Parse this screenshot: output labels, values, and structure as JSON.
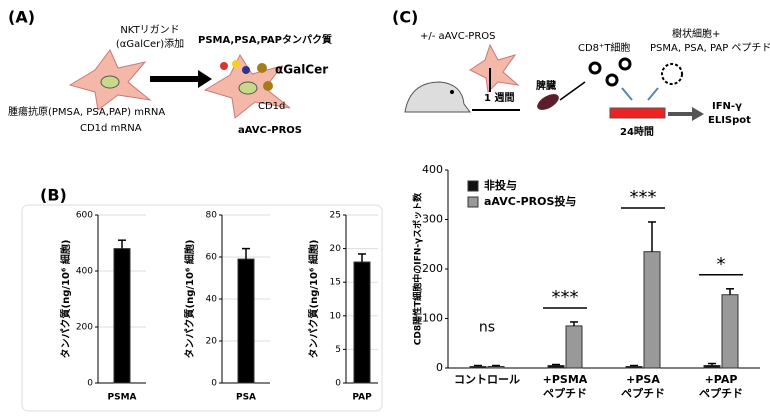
{
  "panels": [
    "(A)",
    "(B)",
    "(C)"
  ],
  "diagram_a": {
    "ligand": [
      "NKTリガンド",
      "(αGalCer)添加"
    ],
    "antigen_mrna": "腫瘍抗原(PMSA, PSA,PAP) mRNA",
    "cd1d_mrna": "CD1d mRNA",
    "proteins": "PSMA,PSA,PAPタンパク質",
    "galcer": "αGalCer",
    "cd1d": "CD1d",
    "product": "aAVC-PROS"
  },
  "diagram_c": {
    "treatment": "+/- aAVC-PROS",
    "week": "1 週間",
    "spleen": "脾臓",
    "cd8": "CD8⁺T細胞",
    "dc": [
      "樹状細胞+",
      "PSMA, PSA, PAP ペプチド"
    ],
    "hours": "24時間",
    "readout": [
      "IFN-γ",
      "ELISpot"
    ]
  },
  "chart_data": [
    {
      "type": "bar",
      "y_label": "タンパク質(ng/10⁶ 細胞)",
      "categories": [
        "PSMA"
      ],
      "values": [
        480
      ],
      "errors": [
        30
      ],
      "color": "#000000",
      "ylim": [
        0,
        600
      ],
      "yticks": [
        0,
        200,
        400,
        600
      ],
      "grid": true
    },
    {
      "type": "bar",
      "y_label": "タンパク質(ng/10⁶ 細胞)",
      "categories": [
        "PSA"
      ],
      "values": [
        59
      ],
      "errors": [
        5
      ],
      "color": "#000000",
      "ylim": [
        0,
        80
      ],
      "yticks": [
        0,
        20,
        40,
        60,
        80
      ],
      "grid": true
    },
    {
      "type": "bar",
      "y_label": "タンパク質(ng/10⁶ 細胞)",
      "categories": [
        "PAP"
      ],
      "values": [
        18
      ],
      "errors": [
        1.2
      ],
      "color": "#000000",
      "ylim": [
        0,
        25
      ],
      "yticks": [
        0,
        5,
        10,
        15,
        20,
        25
      ],
      "grid": true
    },
    {
      "type": "bar",
      "y_label": "CD8陽性T細胞中のIFN-γスポット数",
      "categories": [
        [
          "コントロール"
        ],
        [
          "+PSMA",
          "ペプチド"
        ],
        [
          "+PSA",
          "ペプチド"
        ],
        [
          "+PAP",
          "ペプチド"
        ]
      ],
      "series": [
        {
          "name": "非投与",
          "color": "#111111",
          "values": [
            3,
            5,
            3,
            5
          ],
          "errors": [
            2,
            2,
            2,
            4
          ]
        },
        {
          "name": "aAVC-PROS投与",
          "color": "#999999",
          "values": [
            3,
            85,
            235,
            148
          ],
          "errors": [
            2,
            8,
            60,
            12
          ]
        }
      ],
      "significance": [
        "ns",
        "***",
        "***",
        "*"
      ],
      "ylim": [
        0,
        400
      ],
      "yticks": [
        0,
        100,
        200,
        300,
        400
      ],
      "grid": false
    }
  ]
}
